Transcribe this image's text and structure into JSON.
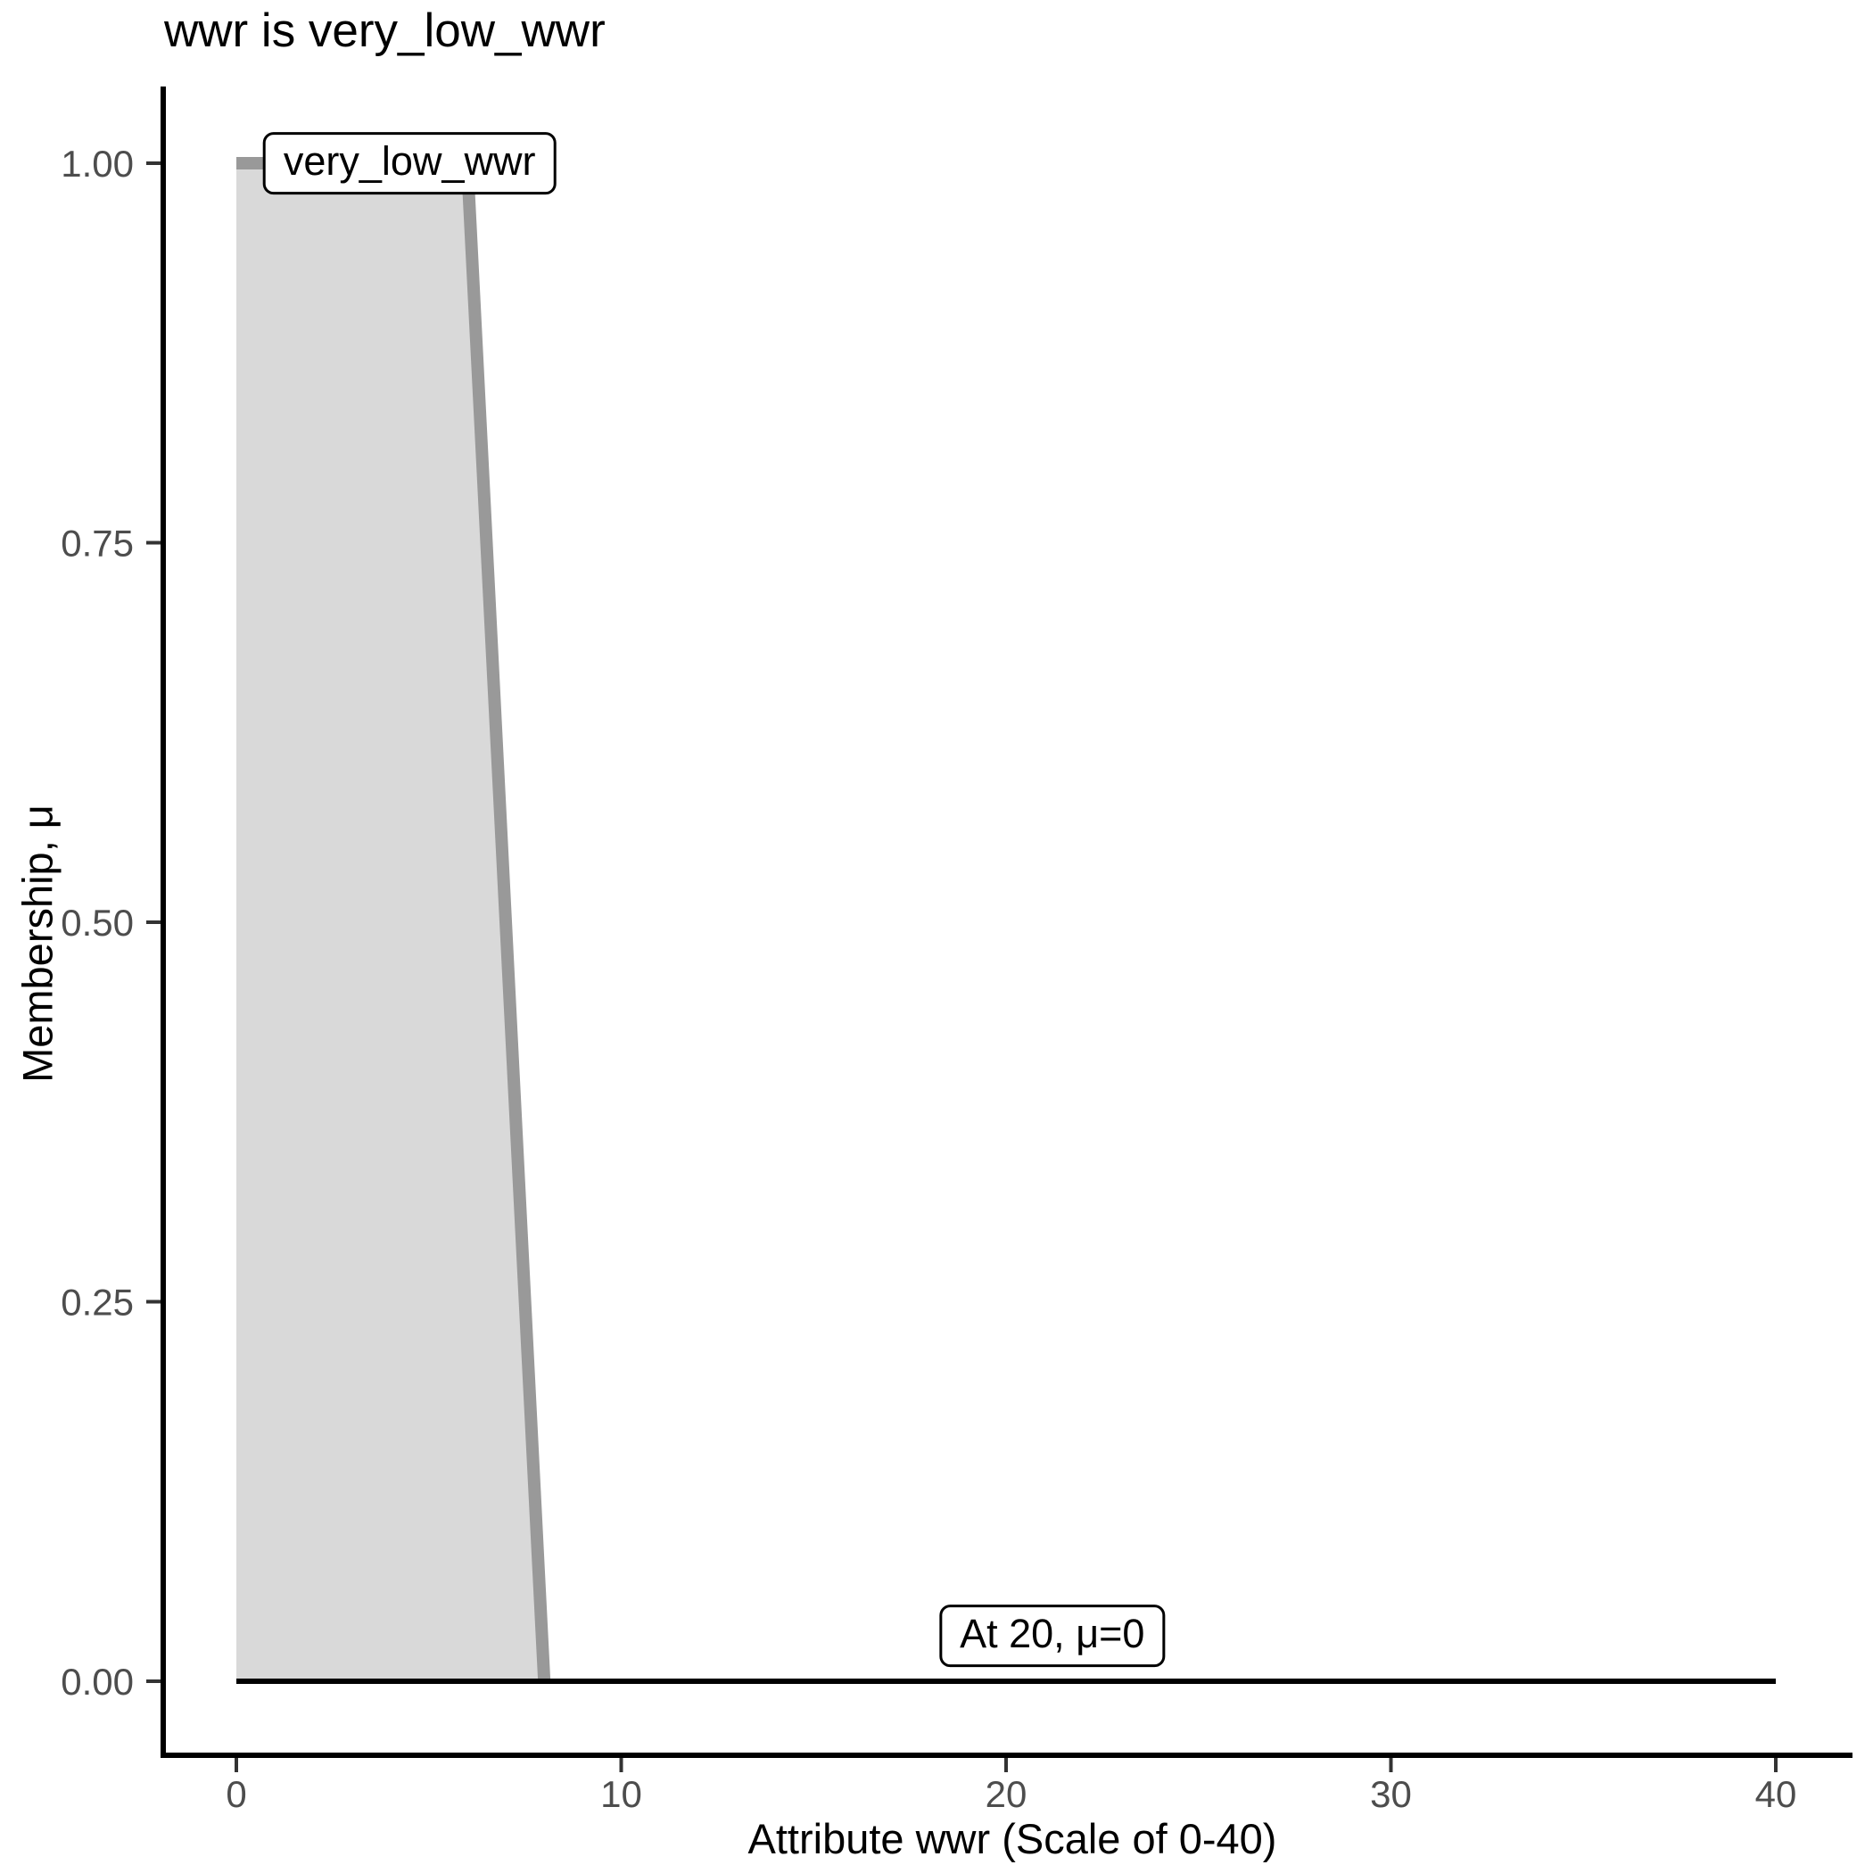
{
  "chart_data": {
    "type": "area",
    "title": "wwr is very_low_wwr",
    "xlabel": "Attribute wwr (Scale of 0-40)",
    "ylabel": "Membership, μ",
    "xlim": [
      0,
      40
    ],
    "ylim": [
      0,
      1
    ],
    "grid": false,
    "legend": "none",
    "x_tick_values": [
      0,
      10,
      20,
      30,
      40
    ],
    "x_tick_labels": [
      "0",
      "10",
      "20",
      "30",
      "40"
    ],
    "y_tick_values": [
      0,
      0.25,
      0.5,
      0.75,
      1
    ],
    "y_tick_labels": [
      "0.00",
      "0.25",
      "0.50",
      "0.75",
      "1.00"
    ],
    "series": [
      {
        "name": "very_low_wwr",
        "points": [
          [
            0,
            1
          ],
          [
            6,
            1
          ],
          [
            8,
            0
          ]
        ],
        "fill_to_zero": true
      }
    ],
    "baseline": {
      "points": [
        [
          0,
          0
        ],
        [
          40,
          0
        ]
      ]
    },
    "annotations": [
      {
        "text": "very_low_wwr",
        "x": 4.5,
        "mu": 1.0
      },
      {
        "text": "At 20, μ=0",
        "x": 21.2,
        "mu": 0.03
      }
    ],
    "colors": {
      "curve": "#999999",
      "fill": "#d9d9d9",
      "baseline": "#000000",
      "axis": "#000000",
      "tick": "#333333",
      "tick_label": "#4d4d4d",
      "text": "#000000",
      "annotation_bg": "#ffffff",
      "annotation_border": "#000000"
    }
  }
}
